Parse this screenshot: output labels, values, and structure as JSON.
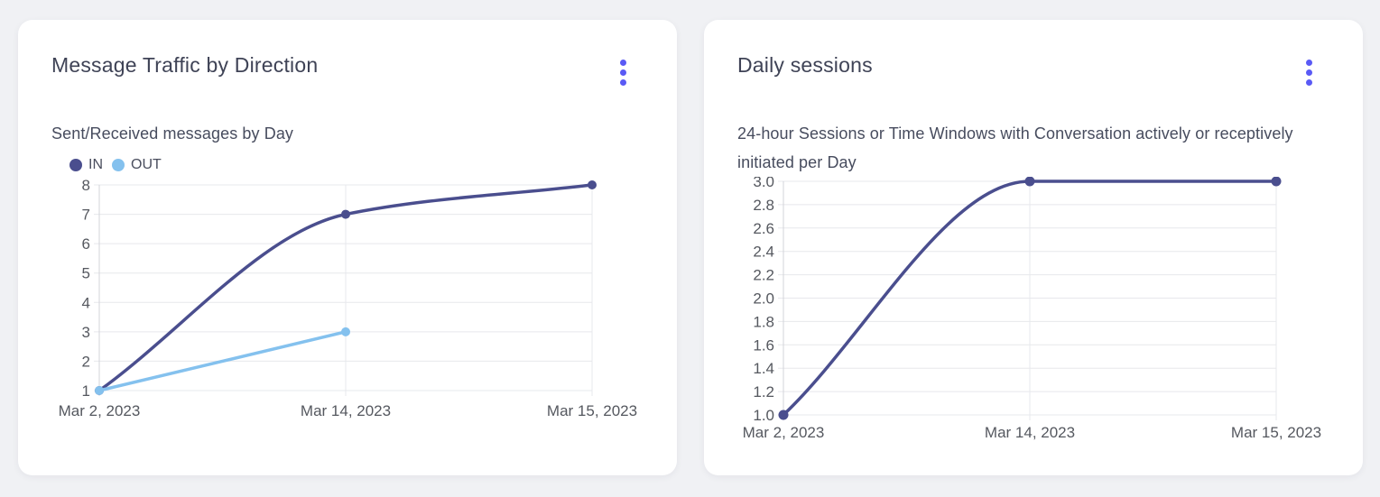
{
  "theme": {
    "page_bg": "#f0f1f4",
    "card_bg": "#ffffff",
    "accent": "#5a5af5",
    "title_color": "#3f4356",
    "subtitle_color": "#474c5e",
    "tick_color": "#55585f",
    "grid_color": "#e7e8ec",
    "axis_color": "#d3d4da"
  },
  "chart_data": [
    {
      "type": "line",
      "title": "Message Traffic by Direction",
      "subtitle": "Sent/Received messages by Day",
      "categories": [
        "Mar 2, 2023",
        "Mar 14, 2023",
        "Mar 15, 2023"
      ],
      "series": [
        {
          "name": "IN",
          "color": "#4a4e8e",
          "values": [
            1,
            7,
            8
          ]
        },
        {
          "name": "OUT",
          "color": "#84c1ee",
          "values": [
            1,
            3,
            null
          ]
        }
      ],
      "ylim": [
        1,
        8
      ],
      "yticks": [
        8,
        7,
        6,
        5,
        4,
        3,
        2,
        1
      ],
      "ytick_labels": [
        "8",
        "7",
        "6",
        "5",
        "4",
        "3",
        "2",
        "1"
      ],
      "xlabel": "",
      "ylabel": "",
      "grid": true,
      "show_legend": true,
      "legend_position": "top-left",
      "interpolation": "monotone"
    },
    {
      "type": "line",
      "title": "Daily sessions",
      "subtitle": "24-hour Sessions or Time Windows with Conversation actively or receptively initiated per Day",
      "categories": [
        "Mar 2, 2023",
        "Mar 14, 2023",
        "Mar 15, 2023"
      ],
      "series": [
        {
          "name": "Sessions",
          "color": "#4a4e8e",
          "values": [
            1.0,
            3.0,
            3.0
          ]
        }
      ],
      "ylim": [
        1.0,
        3.0
      ],
      "yticks": [
        3.0,
        2.8,
        2.6,
        2.4,
        2.2,
        2.0,
        1.8,
        1.6,
        1.4,
        1.2,
        1.0
      ],
      "ytick_labels": [
        "3.0",
        "2.8",
        "2.6",
        "2.4",
        "2.2",
        "2.0",
        "1.8",
        "1.6",
        "1.4",
        "1.2",
        "1.0"
      ],
      "xlabel": "",
      "ylabel": "",
      "grid": true,
      "show_legend": false,
      "legend_position": "none",
      "interpolation": "monotone"
    }
  ]
}
